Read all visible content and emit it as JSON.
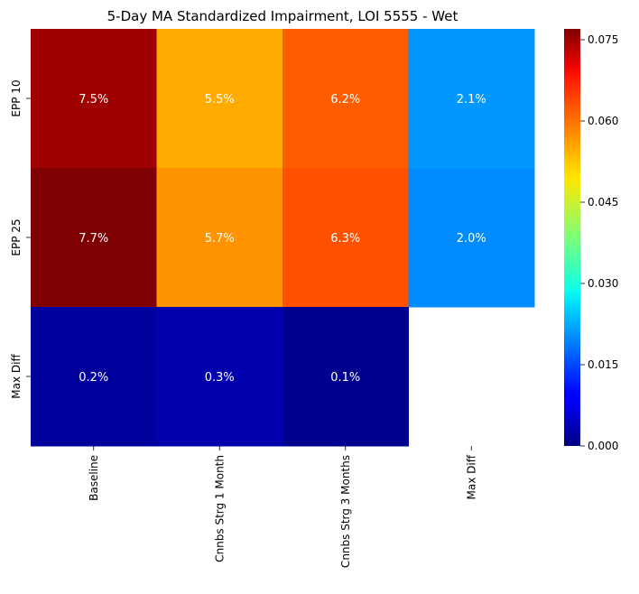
{
  "chart_data": {
    "type": "heatmap",
    "title": "5-Day MA Standardized Impairment, LOI 5555 - Wet",
    "xlabel": "",
    "ylabel": "",
    "x_categories": [
      "Baseline",
      "Cnnbs Strg 1 Month",
      "Cnnbs Strg 3 Months",
      "Max Diff"
    ],
    "y_categories": [
      "EPP 10",
      "EPP 25",
      "Max Diff"
    ],
    "values": [
      [
        0.075,
        0.055,
        0.062,
        0.021
      ],
      [
        0.077,
        0.057,
        0.063,
        0.02
      ],
      [
        0.002,
        0.003,
        0.001,
        null
      ]
    ],
    "annotations": [
      [
        "7.5%",
        "5.5%",
        "6.2%",
        "2.1%"
      ],
      [
        "7.7%",
        "5.7%",
        "6.3%",
        "2.0%"
      ],
      [
        "0.2%",
        "0.3%",
        "0.1%",
        ""
      ]
    ],
    "colormap": "jet",
    "vmin": 0.0,
    "vmax": 0.077,
    "colorbar_ticks": [
      "0.000",
      "0.015",
      "0.030",
      "0.045",
      "0.060",
      "0.075"
    ],
    "colorbar_tick_values": [
      0.0,
      0.015,
      0.03,
      0.045,
      0.06,
      0.075
    ],
    "grid": false,
    "legend": "colorbar-right"
  }
}
